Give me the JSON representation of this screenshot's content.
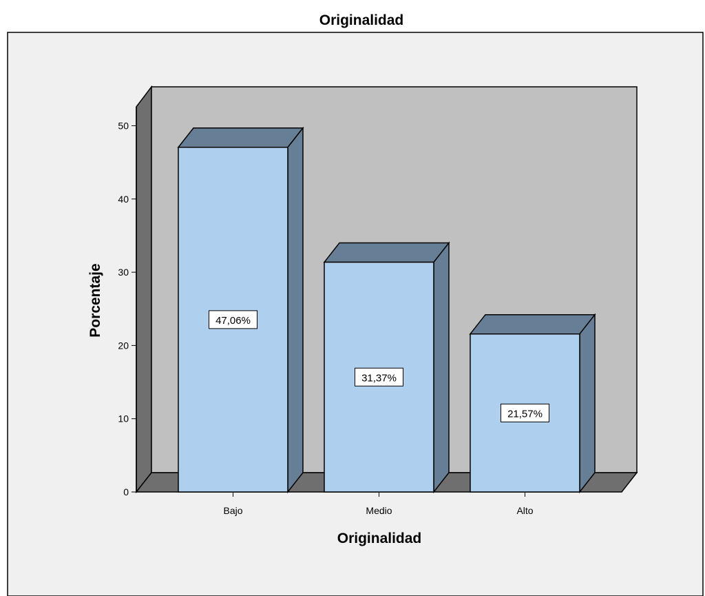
{
  "chart_data": {
    "type": "bar",
    "title": "Originalidad",
    "xlabel": "Originalidad",
    "ylabel": "Porcentaje",
    "categories": [
      "Bajo",
      "Medio",
      "Alto"
    ],
    "values": [
      47.06,
      31.37,
      21.57
    ],
    "data_labels": [
      "47,06%",
      "31,37%",
      "21,57%"
    ],
    "yticks": [
      "0",
      "10",
      "20",
      "30",
      "40",
      "50"
    ],
    "ylim": [
      0,
      55
    ],
    "grid": false,
    "legend": "none",
    "style": "3d",
    "colors": {
      "bar_front": "#aecfee",
      "bar_top_side": "#677f96",
      "back_wall": "#c0c0c0",
      "left_wall": "#6f6f6f",
      "floor": "#6f6f6f",
      "frame_background": "#f0f0f0"
    }
  }
}
